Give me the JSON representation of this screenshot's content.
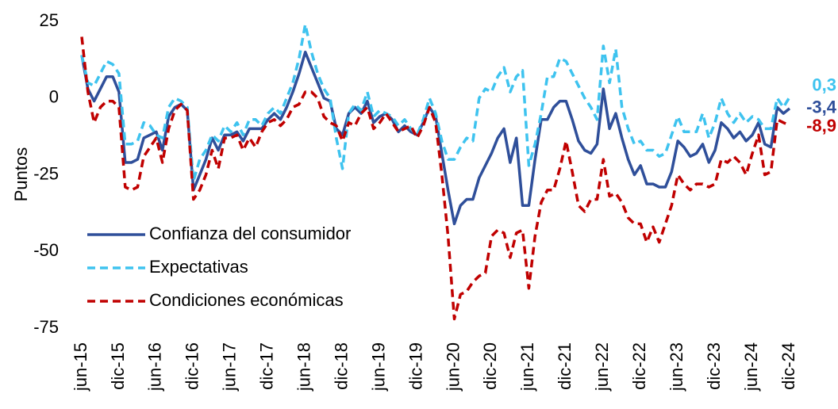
{
  "chart_data": {
    "type": "line",
    "y_label": "Puntos",
    "categories": [
      "jun-15",
      null,
      null,
      null,
      null,
      null,
      "dic-15",
      null,
      null,
      null,
      null,
      null,
      "jun-16",
      null,
      null,
      null,
      null,
      null,
      "dic-16",
      null,
      null,
      null,
      null,
      null,
      "jun-17",
      null,
      null,
      null,
      null,
      null,
      "dic-17",
      null,
      null,
      null,
      null,
      null,
      "jun-18",
      null,
      null,
      null,
      null,
      null,
      "dic-18",
      null,
      null,
      null,
      null,
      null,
      "jun-19",
      null,
      null,
      null,
      null,
      null,
      "dic-19",
      null,
      null,
      null,
      null,
      null,
      "jun-20",
      null,
      null,
      null,
      null,
      null,
      "dic-20",
      null,
      null,
      null,
      null,
      null,
      "jun-21",
      null,
      null,
      null,
      null,
      null,
      "dic-21",
      null,
      null,
      null,
      null,
      null,
      "jun-22",
      null,
      null,
      null,
      null,
      null,
      "dic-22",
      null,
      null,
      null,
      null,
      null,
      "jun-23",
      null,
      null,
      null,
      null,
      null,
      "dic-23",
      null,
      null,
      null,
      null,
      null,
      "jun-24",
      null,
      null,
      null,
      null,
      null,
      "dic-24"
    ],
    "series": [
      {
        "name": "Confianza del consumidor",
        "color": "#2f4f9a",
        "dash": "solid",
        "values": [
          14,
          3,
          -1,
          3,
          7,
          7,
          2,
          -21,
          -21,
          -20,
          -13,
          -12,
          -11,
          -17,
          -6,
          -3,
          -2,
          -4,
          -30,
          -25,
          -20,
          -13,
          -17,
          -12,
          -12,
          -11,
          -14,
          -10,
          -10,
          -10,
          -7,
          -5,
          -7,
          -3,
          2,
          8,
          15,
          10,
          5,
          0,
          -1,
          -10,
          -12,
          -5,
          -3,
          -5,
          -1,
          -8,
          -6,
          -5,
          -7,
          -11,
          -9,
          -11,
          -12,
          -8,
          -3,
          -6,
          -18,
          -30,
          -41,
          -35,
          -33,
          -33,
          -26,
          -22,
          -18,
          -13,
          -10,
          -21,
          -13,
          -35,
          -35,
          -20,
          -7,
          -7,
          -3,
          -1,
          -1,
          -7,
          -14,
          -17,
          -18,
          -15,
          3,
          -10,
          -5,
          -13,
          -20,
          -25,
          -22,
          -28,
          -28,
          -29,
          -29,
          -24,
          -14,
          -16,
          -19,
          -18,
          -15,
          -21,
          -17,
          -8,
          -10,
          -13,
          -11,
          -14,
          -12,
          -8,
          -15,
          -16,
          -3,
          -5,
          -3.4
        ],
        "value_labels": [
          null,
          null,
          null,
          null,
          null,
          null,
          null,
          null,
          null,
          null,
          null,
          null,
          null,
          null,
          null,
          null,
          null,
          null,
          null,
          null,
          null,
          null,
          null,
          null,
          null,
          null,
          null,
          null,
          null,
          null,
          null,
          null,
          null,
          null,
          null,
          null,
          null,
          null,
          null,
          null,
          null,
          null,
          null,
          null,
          null,
          null,
          null,
          null,
          null,
          null,
          null,
          null,
          null,
          null,
          null,
          null,
          null,
          null,
          null,
          null,
          null,
          null,
          null,
          null,
          null,
          null,
          null,
          null,
          null,
          null,
          null,
          null,
          null,
          null,
          null,
          null,
          null,
          null,
          null,
          null,
          null,
          null,
          null,
          null,
          null,
          null,
          null,
          null,
          null,
          null,
          null,
          null,
          null,
          null,
          null,
          null,
          null,
          null,
          null,
          null,
          null,
          null,
          null,
          null,
          null,
          null,
          null,
          null,
          null,
          null,
          null,
          null,
          null,
          null,
          "-3,4"
        ]
      },
      {
        "name": "Expectativas",
        "color": "#3ec3ef",
        "dash": "dashed",
        "values": [
          14,
          5,
          4,
          8,
          12,
          11,
          8,
          -15,
          -15,
          -14,
          -8,
          -9,
          -12,
          -13,
          -3,
          0,
          -1,
          -3,
          -27,
          -20,
          -17,
          -12,
          -14,
          -9,
          -11,
          -8,
          -12,
          -7,
          -7,
          -9,
          -5,
          -3,
          -5,
          0,
          5,
          13,
          24,
          15,
          8,
          3,
          0,
          -13,
          -23,
          -5,
          -2,
          -4,
          2,
          -6,
          -4,
          -5,
          -6,
          -9,
          -7,
          -10,
          -12,
          -7,
          0,
          -5,
          -14,
          -20,
          -20,
          -16,
          -13,
          -14,
          0,
          3,
          2,
          7,
          10,
          2,
          7,
          9,
          -22,
          -15,
          -5,
          7,
          7,
          13,
          12,
          8,
          4,
          0,
          -3,
          -7,
          17,
          5,
          16,
          -3,
          -10,
          -15,
          -14,
          -17,
          -17,
          -19,
          -18,
          -12,
          -6,
          -11,
          -11,
          -11,
          -5,
          -13,
          -8,
          0,
          -5,
          -8,
          -5,
          -8,
          -6,
          -7,
          -10,
          -10,
          0,
          -3,
          0.3
        ],
        "value_labels": [
          null,
          null,
          null,
          null,
          null,
          null,
          null,
          null,
          null,
          null,
          null,
          null,
          null,
          null,
          null,
          null,
          null,
          null,
          null,
          null,
          null,
          null,
          null,
          null,
          null,
          null,
          null,
          null,
          null,
          null,
          null,
          null,
          null,
          null,
          null,
          null,
          null,
          null,
          null,
          null,
          null,
          null,
          null,
          null,
          null,
          null,
          null,
          null,
          null,
          null,
          null,
          null,
          null,
          null,
          null,
          null,
          null,
          null,
          null,
          null,
          null,
          null,
          null,
          null,
          null,
          null,
          null,
          null,
          null,
          null,
          null,
          null,
          null,
          null,
          null,
          null,
          null,
          null,
          null,
          null,
          null,
          null,
          null,
          null,
          null,
          null,
          null,
          null,
          null,
          null,
          null,
          null,
          null,
          null,
          null,
          null,
          null,
          null,
          null,
          null,
          null,
          null,
          null,
          null,
          null,
          null,
          null,
          null,
          null,
          null,
          null,
          null,
          null,
          null,
          "0,3"
        ]
      },
      {
        "name": "Condiciones económicas",
        "color": "#c00000",
        "dash": "dashed",
        "values": [
          20,
          2,
          -8,
          -3,
          -1,
          -1,
          -3,
          -29,
          -30,
          -29,
          -19,
          -16,
          -13,
          -21,
          -10,
          -4,
          -2,
          -4,
          -33,
          -30,
          -25,
          -17,
          -23,
          -13,
          -13,
          -12,
          -17,
          -13,
          -16,
          -11,
          -8,
          -7,
          -9,
          -7,
          -3,
          -2,
          2,
          2,
          0,
          -6,
          -8,
          -9,
          -14,
          -8,
          -9,
          -5,
          -3,
          -10,
          -8,
          -5,
          -8,
          -11,
          -10,
          -9,
          -13,
          -9,
          -3,
          -8,
          -25,
          -45,
          -72,
          -64,
          -63,
          -60,
          -58,
          -57,
          -45,
          -43,
          -44,
          -52,
          -44,
          -43,
          -62,
          -45,
          -34,
          -30,
          -30,
          -23,
          -14,
          -24,
          -35,
          -37,
          -33,
          -33,
          -20,
          -32,
          -31,
          -34,
          -39,
          -41,
          -41,
          -47,
          -42,
          -47,
          -41,
          -35,
          -25,
          -28,
          -30,
          -28,
          -28,
          -29,
          -28,
          -20,
          -21,
          -19,
          -21,
          -25,
          -18,
          -12,
          -25,
          -24,
          -7,
          -8,
          -8.9
        ],
        "value_labels": [
          null,
          null,
          null,
          null,
          null,
          null,
          null,
          null,
          null,
          null,
          null,
          null,
          null,
          null,
          null,
          null,
          null,
          null,
          null,
          null,
          null,
          null,
          null,
          null,
          null,
          null,
          null,
          null,
          null,
          null,
          null,
          null,
          null,
          null,
          null,
          null,
          null,
          null,
          null,
          null,
          null,
          null,
          null,
          null,
          null,
          null,
          null,
          null,
          null,
          null,
          null,
          null,
          null,
          null,
          null,
          null,
          null,
          null,
          null,
          null,
          null,
          null,
          null,
          null,
          null,
          null,
          null,
          null,
          null,
          null,
          null,
          null,
          null,
          null,
          null,
          null,
          null,
          null,
          null,
          null,
          null,
          null,
          null,
          null,
          null,
          null,
          null,
          null,
          null,
          null,
          null,
          null,
          null,
          null,
          null,
          null,
          null,
          null,
          null,
          null,
          null,
          null,
          null,
          null,
          null,
          null,
          null,
          null,
          null,
          null,
          null,
          null,
          null,
          null,
          "-8,9"
        ]
      }
    ],
    "ylim": [
      -75,
      25
    ],
    "yticks": [
      -75,
      -50,
      -25,
      0,
      25
    ],
    "grid": false,
    "legend": "lower left"
  }
}
